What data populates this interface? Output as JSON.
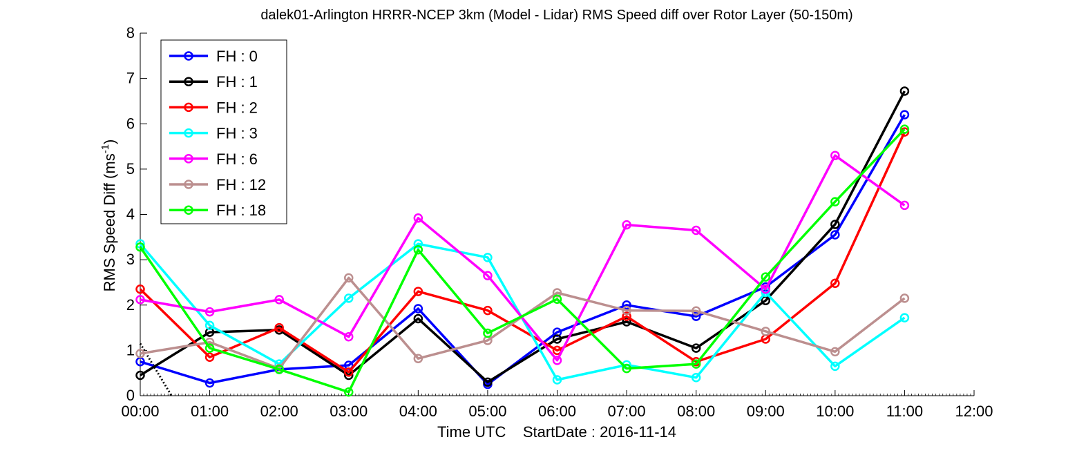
{
  "chart_data": {
    "type": "line",
    "title": "dalek01-Arlington HRRR-NCEP 3km (Model - Lidar) RMS Speed diff over Rotor Layer (50-150m)",
    "xlabel": "Time UTC    StartDate : 2016-11-14",
    "ylabel_main": "RMS Speed Diff (ms",
    "ylabel_sup": "-1",
    "ylabel_tail": ")",
    "x_ticks": [
      "00:00",
      "01:00",
      "02:00",
      "03:00",
      "04:00",
      "05:00",
      "06:00",
      "07:00",
      "08:00",
      "09:00",
      "10:00",
      "11:00",
      "12:00"
    ],
    "y_ticks": [
      "0",
      "1",
      "2",
      "3",
      "4",
      "5",
      "6",
      "7",
      "8"
    ],
    "xlim": [
      0,
      12
    ],
    "ylim": [
      0,
      8
    ],
    "grid": false,
    "legend_position": "top-left",
    "x": [
      0,
      1,
      2,
      3,
      4,
      5,
      6,
      7,
      8,
      9,
      10,
      11
    ],
    "series": [
      {
        "name": "FH : 0",
        "color": "#0000ff",
        "values": [
          0.75,
          0.28,
          0.58,
          0.67,
          1.92,
          0.25,
          1.4,
          2.0,
          1.75,
          2.4,
          3.55,
          6.2
        ]
      },
      {
        "name": "FH : 1",
        "color": "#000000",
        "values": [
          0.45,
          1.4,
          1.45,
          0.45,
          1.7,
          0.3,
          1.25,
          1.63,
          1.05,
          2.1,
          3.78,
          6.72
        ]
      },
      {
        "name": "FH : 2",
        "color": "#ff0000",
        "values": [
          2.35,
          0.85,
          1.5,
          0.52,
          2.3,
          1.88,
          1.0,
          1.75,
          0.75,
          1.25,
          2.48,
          5.82
        ]
      },
      {
        "name": "FH : 3",
        "color": "#00ffff",
        "values": [
          3.35,
          1.55,
          0.7,
          2.15,
          3.35,
          3.05,
          0.35,
          0.68,
          0.4,
          2.28,
          0.65,
          1.72
        ]
      },
      {
        "name": "FH : 6",
        "color": "#ff00ff",
        "values": [
          2.12,
          1.85,
          2.12,
          1.3,
          3.92,
          2.65,
          0.78,
          3.77,
          3.65,
          2.35,
          5.3,
          4.2
        ]
      },
      {
        "name": "FH : 12",
        "color": "#bc8f8f",
        "values": [
          0.93,
          1.18,
          0.6,
          2.6,
          0.82,
          1.22,
          2.27,
          1.88,
          1.87,
          1.42,
          0.97,
          2.15
        ]
      },
      {
        "name": "FH : 18",
        "color": "#00ff00",
        "values": [
          3.28,
          1.05,
          0.58,
          0.08,
          3.22,
          1.38,
          2.13,
          0.6,
          0.7,
          2.62,
          4.28,
          5.88
        ]
      }
    ],
    "annotation_line": {
      "color": "#000000",
      "style": "dotted",
      "x": [
        0.0,
        0.45
      ],
      "y": [
        1.15,
        0.0
      ]
    }
  }
}
